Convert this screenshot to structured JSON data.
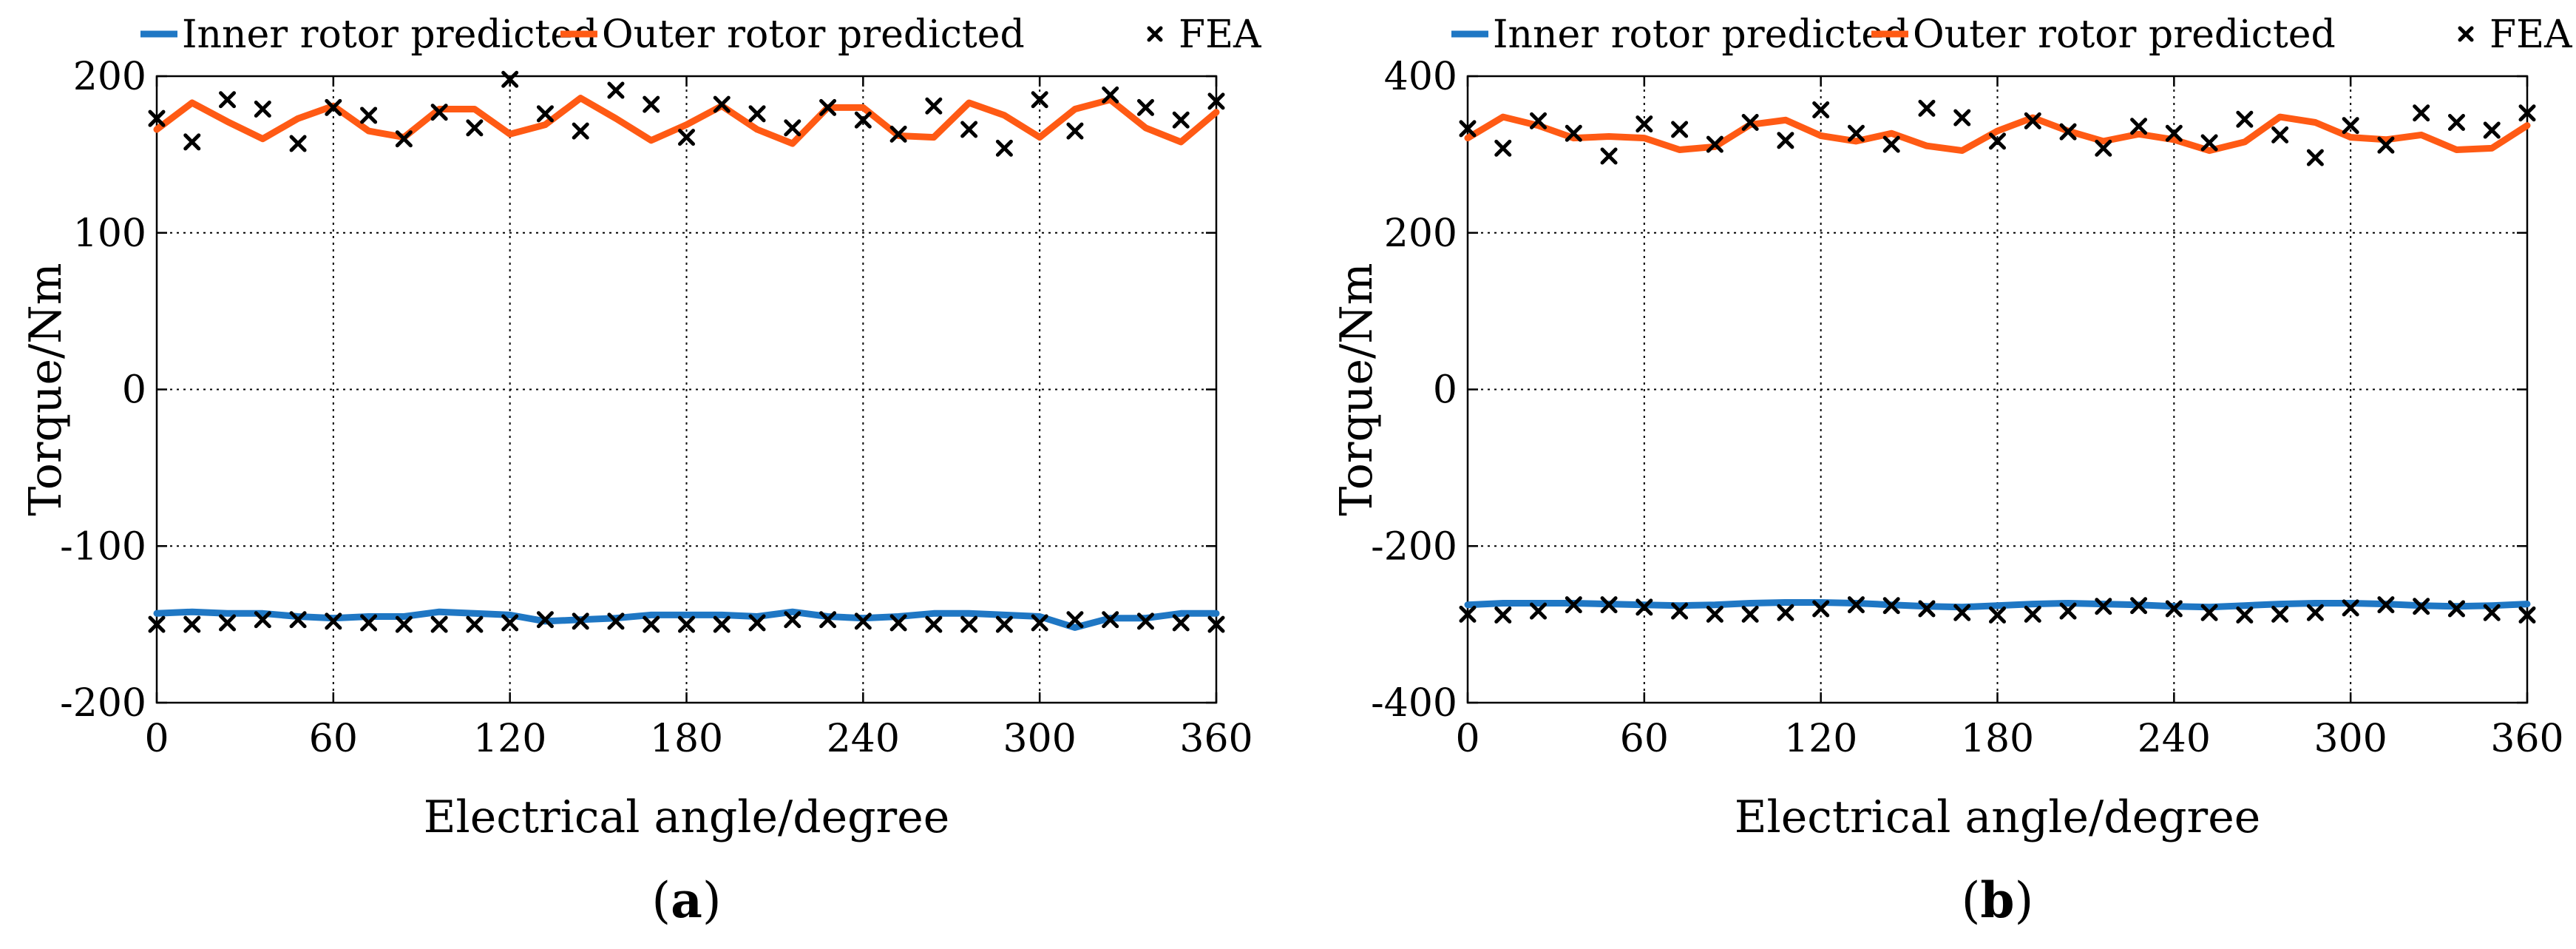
{
  "chart_data": [
    {
      "type": "line",
      "panel_label": "a",
      "xlabel": "Electrical angle/degree",
      "ylabel": "Torque/Nm",
      "xlim": [
        0,
        360
      ],
      "ylim": [
        -200,
        200
      ],
      "xticks": [
        0,
        60,
        120,
        180,
        240,
        300,
        360
      ],
      "yticks": [
        -200,
        -100,
        0,
        100,
        200
      ],
      "grid": true,
      "legend": {
        "placement": "top",
        "entries": [
          {
            "label": "Inner rotor predicted",
            "style": "line",
            "color": "#1f77c4"
          },
          {
            "label": "Outer rotor predicted",
            "style": "line",
            "color": "#ff5a14"
          },
          {
            "label": "FEA",
            "style": "marker"
          }
        ]
      },
      "series": [
        {
          "name": "Inner rotor predicted",
          "color": "#1f77c4",
          "x": [
            0,
            12,
            24,
            36,
            48,
            60,
            72,
            84,
            96,
            108,
            120,
            132,
            144,
            156,
            168,
            180,
            192,
            204,
            216,
            228,
            240,
            252,
            264,
            276,
            288,
            300,
            312,
            324,
            336,
            348,
            360
          ],
          "y": [
            -143,
            -142,
            -143,
            -143,
            -145,
            -146,
            -145,
            -145,
            -142,
            -143,
            -144,
            -148,
            -147,
            -146,
            -144,
            -144,
            -144,
            -145,
            -142,
            -145,
            -146,
            -145,
            -143,
            -143,
            -144,
            -145,
            -152,
            -146,
            -146,
            -143,
            -143
          ]
        },
        {
          "name": "Outer rotor predicted",
          "color": "#ff5a14",
          "x": [
            0,
            12,
            24,
            36,
            48,
            60,
            72,
            84,
            96,
            108,
            120,
            132,
            144,
            156,
            168,
            180,
            192,
            204,
            216,
            228,
            240,
            252,
            264,
            276,
            288,
            300,
            312,
            324,
            336,
            348,
            360
          ],
          "y": [
            166,
            183,
            171,
            160,
            173,
            181,
            165,
            161,
            179,
            179,
            163,
            169,
            186,
            173,
            159,
            169,
            181,
            166,
            157,
            180,
            180,
            162,
            161,
            183,
            175,
            161,
            179,
            185,
            167,
            158,
            177
          ]
        },
        {
          "name": "FEA",
          "style": "marker",
          "x": [
            0,
            12,
            24,
            36,
            48,
            60,
            72,
            84,
            96,
            108,
            120,
            132,
            144,
            156,
            168,
            180,
            192,
            204,
            216,
            228,
            240,
            252,
            264,
            276,
            288,
            300,
            312,
            324,
            336,
            348,
            360
          ],
          "y_outer": [
            173,
            158,
            185,
            179,
            157,
            180,
            175,
            160,
            177,
            167,
            198,
            176,
            165,
            191,
            182,
            161,
            182,
            176,
            167,
            180,
            172,
            163,
            181,
            166,
            154,
            185,
            165,
            188,
            180,
            172,
            184
          ],
          "y_inner": [
            -150,
            -150,
            -149,
            -147,
            -147,
            -148,
            -149,
            -150,
            -150,
            -150,
            -149,
            -147,
            -148,
            -148,
            -150,
            -150,
            -150,
            -149,
            -147,
            -147,
            -148,
            -149,
            -150,
            -150,
            -150,
            -149,
            -147,
            -147,
            -148,
            -149,
            -150
          ]
        }
      ]
    },
    {
      "type": "line",
      "panel_label": "b",
      "xlabel": "Electrical angle/degree",
      "ylabel": "Torque/Nm",
      "xlim": [
        0,
        360
      ],
      "ylim": [
        -400,
        400
      ],
      "xticks": [
        0,
        60,
        120,
        180,
        240,
        300,
        360
      ],
      "yticks": [
        -400,
        -200,
        0,
        200,
        400
      ],
      "grid": true,
      "legend": {
        "placement": "top",
        "entries": [
          {
            "label": "Inner rotor predicted",
            "style": "line",
            "color": "#1f77c4"
          },
          {
            "label": "Outer rotor predicted",
            "style": "line",
            "color": "#ff5a14"
          },
          {
            "label": "FEA",
            "style": "marker"
          }
        ]
      },
      "series": [
        {
          "name": "Inner rotor predicted",
          "color": "#1f77c4",
          "x": [
            0,
            12,
            24,
            36,
            48,
            60,
            72,
            84,
            96,
            108,
            120,
            132,
            144,
            156,
            168,
            180,
            192,
            204,
            216,
            228,
            240,
            252,
            264,
            276,
            288,
            300,
            312,
            324,
            336,
            348,
            360
          ],
          "y": [
            -275,
            -273,
            -273,
            -273,
            -274,
            -275,
            -276,
            -275,
            -273,
            -272,
            -272,
            -273,
            -275,
            -277,
            -278,
            -276,
            -274,
            -273,
            -274,
            -275,
            -277,
            -278,
            -276,
            -274,
            -273,
            -273,
            -274,
            -276,
            -277,
            -276,
            -274
          ]
        },
        {
          "name": "Outer rotor predicted",
          "color": "#ff5a14",
          "x": [
            0,
            12,
            24,
            36,
            48,
            60,
            72,
            84,
            96,
            108,
            120,
            132,
            144,
            156,
            168,
            180,
            192,
            204,
            216,
            228,
            240,
            252,
            264,
            276,
            288,
            300,
            312,
            324,
            336,
            348,
            360
          ],
          "y": [
            321,
            348,
            337,
            321,
            323,
            321,
            306,
            310,
            338,
            344,
            324,
            317,
            327,
            311,
            305,
            330,
            347,
            330,
            317,
            326,
            319,
            305,
            316,
            348,
            341,
            322,
            319,
            325,
            306,
            308,
            337
          ]
        },
        {
          "name": "FEA",
          "style": "marker",
          "x": [
            0,
            12,
            24,
            36,
            48,
            60,
            72,
            84,
            96,
            108,
            120,
            132,
            144,
            156,
            168,
            180,
            192,
            204,
            216,
            228,
            240,
            252,
            264,
            276,
            288,
            300,
            312,
            324,
            336,
            348,
            360
          ],
          "y_outer": [
            333,
            308,
            343,
            327,
            298,
            339,
            332,
            313,
            341,
            318,
            357,
            327,
            313,
            359,
            347,
            317,
            343,
            329,
            308,
            336,
            327,
            315,
            345,
            325,
            296,
            337,
            312,
            353,
            341,
            331,
            353
          ],
          "y_inner": [
            -287,
            -288,
            -283,
            -275,
            -275,
            -278,
            -283,
            -287,
            -287,
            -285,
            -280,
            -275,
            -276,
            -280,
            -285,
            -288,
            -287,
            -283,
            -277,
            -276,
            -280,
            -285,
            -288,
            -287,
            -285,
            -279,
            -275,
            -277,
            -280,
            -285,
            -288
          ]
        }
      ]
    }
  ]
}
